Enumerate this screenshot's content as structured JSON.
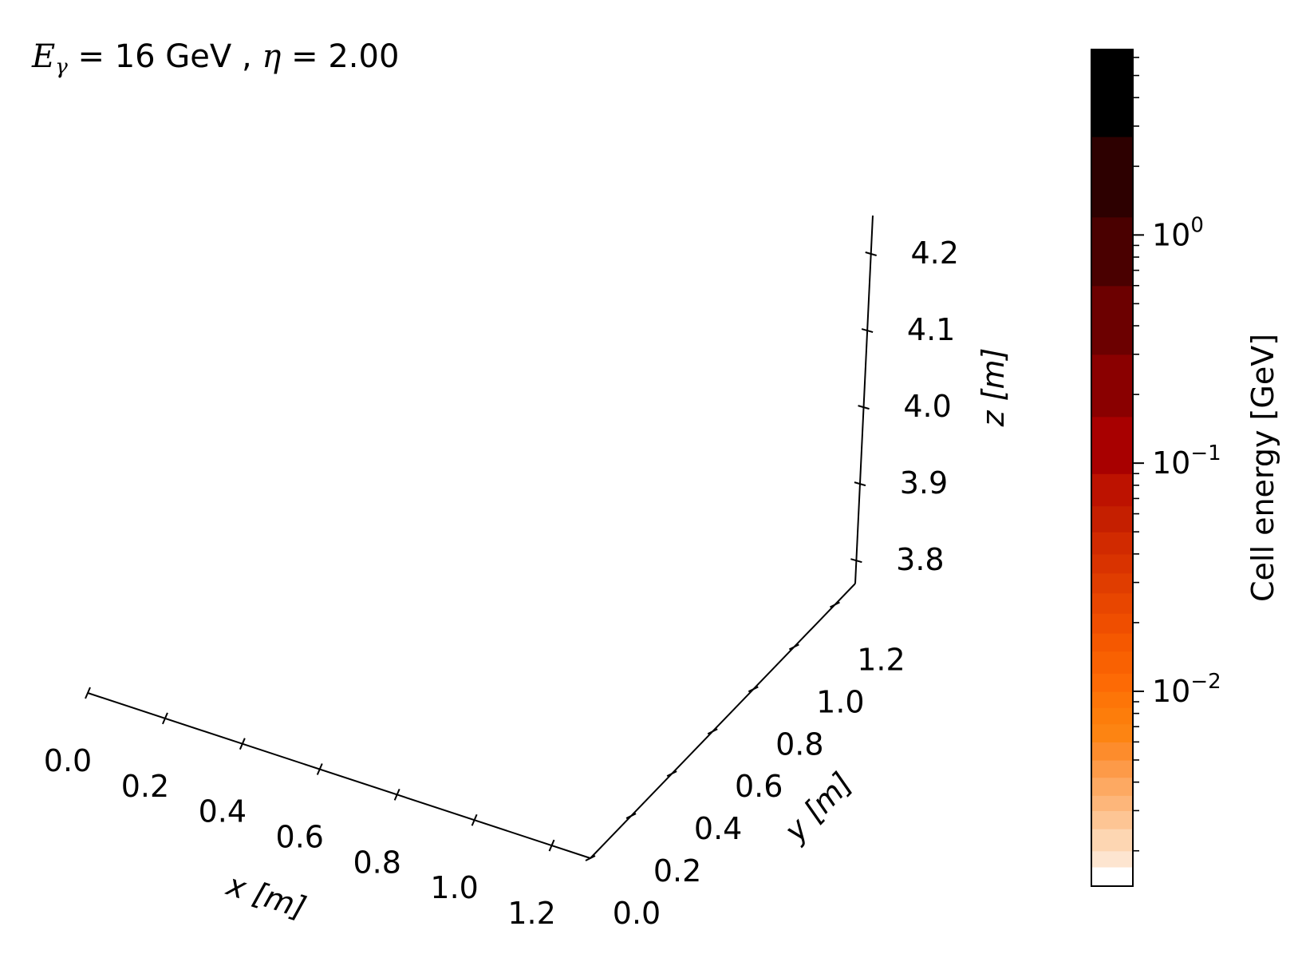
{
  "chart_data": {
    "type": "scatter",
    "projection": "3d",
    "title_parts": {
      "e_symbol": "E",
      "e_subscript": "γ",
      "e_value": " = 16 GeV , ",
      "eta_symbol": "η",
      "eta_value": " = 2.00"
    },
    "x_axis": {
      "label": "x [m]",
      "range": [
        0.0,
        1.3
      ],
      "ticks": [
        0.0,
        0.2,
        0.4,
        0.6,
        0.8,
        1.0,
        1.2
      ],
      "tick_labels": [
        "0.0",
        "0.2",
        "0.4",
        "0.6",
        "0.8",
        "1.0",
        "1.2"
      ]
    },
    "y_axis": {
      "label": "y [m]",
      "range": [
        0.0,
        1.3
      ],
      "ticks": [
        0.0,
        0.2,
        0.4,
        0.6,
        0.8,
        1.0,
        1.2
      ],
      "tick_labels": [
        "0.0",
        "0.2",
        "0.4",
        "0.6",
        "0.8",
        "1.0",
        "1.2"
      ]
    },
    "z_axis": {
      "label": "z [m]",
      "range": [
        3.77,
        4.25
      ],
      "ticks": [
        3.8,
        3.9,
        4.0,
        4.1,
        4.2
      ],
      "tick_labels": [
        "3.8",
        "3.9",
        "4.0",
        "4.1",
        "4.2"
      ]
    },
    "points": [],
    "grid": false,
    "colorbar": {
      "label": "Cell energy [GeV]",
      "scale": "log",
      "range": [
        0.0014,
        6.5
      ],
      "major_ticks": [
        0.01,
        0.1,
        1.0
      ],
      "major_tick_base": [
        "10",
        "10",
        "10"
      ],
      "major_tick_exp": [
        "−2",
        "−1",
        "0"
      ],
      "bands": [
        {
          "from": 0.0014,
          "to": 0.0017,
          "color": "#ffffff"
        },
        {
          "from": 0.0017,
          "to": 0.002,
          "color": "#fde5d0"
        },
        {
          "from": 0.002,
          "to": 0.0025,
          "color": "#fdd6b2"
        },
        {
          "from": 0.0025,
          "to": 0.003,
          "color": "#fdc594"
        },
        {
          "from": 0.003,
          "to": 0.0035,
          "color": "#fdb67a"
        },
        {
          "from": 0.0035,
          "to": 0.0042,
          "color": "#fda962"
        },
        {
          "from": 0.0042,
          "to": 0.005,
          "color": "#fd9a48"
        },
        {
          "from": 0.005,
          "to": 0.006,
          "color": "#fd8c2c"
        },
        {
          "from": 0.006,
          "to": 0.0072,
          "color": "#fd8412"
        },
        {
          "from": 0.0072,
          "to": 0.0085,
          "color": "#fd7d0b"
        },
        {
          "from": 0.0085,
          "to": 0.01,
          "color": "#fd7508"
        },
        {
          "from": 0.01,
          "to": 0.012,
          "color": "#fd6a05"
        },
        {
          "from": 0.012,
          "to": 0.015,
          "color": "#f96102"
        },
        {
          "from": 0.015,
          "to": 0.018,
          "color": "#f55800"
        },
        {
          "from": 0.018,
          "to": 0.022,
          "color": "#ef4e00"
        },
        {
          "from": 0.022,
          "to": 0.027,
          "color": "#e84600"
        },
        {
          "from": 0.027,
          "to": 0.033,
          "color": "#e03d00"
        },
        {
          "from": 0.033,
          "to": 0.04,
          "color": "#d93300"
        },
        {
          "from": 0.04,
          "to": 0.05,
          "color": "#d12a00"
        },
        {
          "from": 0.05,
          "to": 0.065,
          "color": "#c51f00"
        },
        {
          "from": 0.065,
          "to": 0.09,
          "color": "#bd1200"
        },
        {
          "from": 0.09,
          "to": 0.16,
          "color": "#a80000"
        },
        {
          "from": 0.16,
          "to": 0.3,
          "color": "#8a0000"
        },
        {
          "from": 0.3,
          "to": 0.6,
          "color": "#6c0000"
        },
        {
          "from": 0.6,
          "to": 1.2,
          "color": "#4a0000"
        },
        {
          "from": 1.2,
          "to": 2.7,
          "color": "#2d0000"
        },
        {
          "from": 2.7,
          "to": 6.5,
          "color": "#000000"
        }
      ]
    }
  }
}
